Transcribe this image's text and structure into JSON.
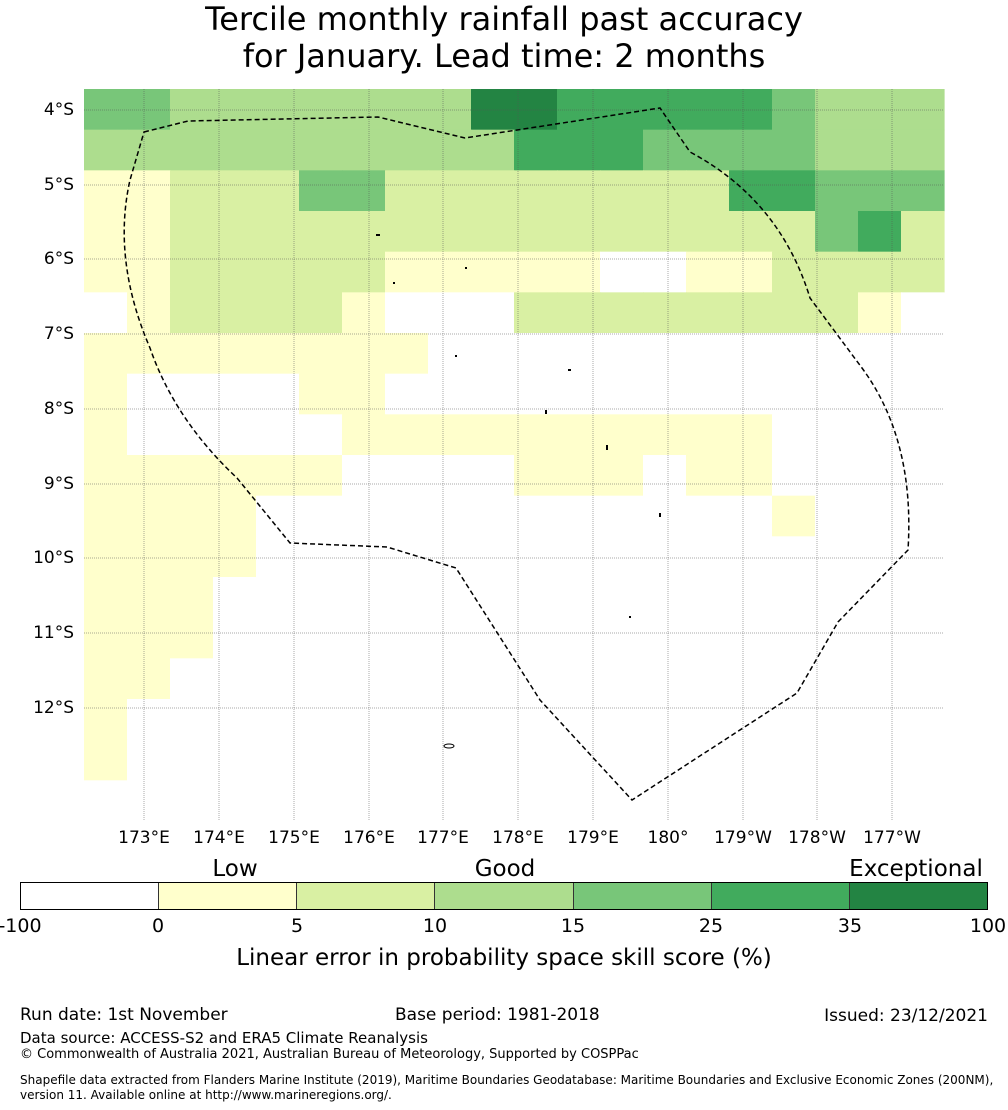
{
  "title": {
    "line1": "Tercile monthly rainfall past accuracy",
    "line2": "for January. Lead time: 2 months"
  },
  "map": {
    "lat_labels": [
      "4°S",
      "5°S",
      "6°S",
      "7°S",
      "8°S",
      "9°S",
      "10°S",
      "11°S",
      "12°S"
    ],
    "lon_labels": [
      "173°E",
      "174°E",
      "175°E",
      "176°E",
      "177°E",
      "178°E",
      "179°E",
      "180°",
      "179°W",
      "178°W",
      "177°W"
    ],
    "colors": [
      "#ffffff",
      "#ffffcc",
      "#d9f0a3",
      "#addd8e",
      "#78c679",
      "#41ab5d",
      "#238443"
    ],
    "grid_rows": [
      "44333333366555554333",
      "33333333335554444333",
      "11222442222222255444",
      "11222222222222222452",
      "11222221111100112222",
      "01222210002222222210",
      "11111111000000000000",
      "10000110000000000000",
      "10000011111111110000",
      "11111100001110110000",
      "11110000000000001000",
      "11110000000000000000",
      "11100000000000000000",
      "11100000000000000000",
      "11000000000000000000",
      "10000000000000000000",
      "10000000000000000000",
      "00000000000000000000"
    ]
  },
  "legend": {
    "categories": [
      "Low",
      "Good",
      "Exceptional"
    ],
    "ticks": [
      "-100",
      "0",
      "5",
      "10",
      "15",
      "25",
      "35",
      "100"
    ],
    "label": "Linear error in probability space skill score (%)"
  },
  "info": {
    "run_date": "Run date: 1st November",
    "base_period": "Base period: 1981-2018",
    "issued": "Issued: 23/12/2021",
    "data_source": "Data source: ACCESS-S2 and ERA5 Climate Reanalysis",
    "copyright": "© Commonwealth of Australia 2021, Australian Bureau of Meteorology, Supported by COSPPac",
    "shapefile_line1": "Shapefile data extracted from Flanders Marine Institute (2019), Maritime Boundaries Geodatabase: Maritime Boundaries and Exclusive Economic Zones (200NM),",
    "shapefile_line2": "version 11. Available online at http://www.marineregions.org/."
  }
}
